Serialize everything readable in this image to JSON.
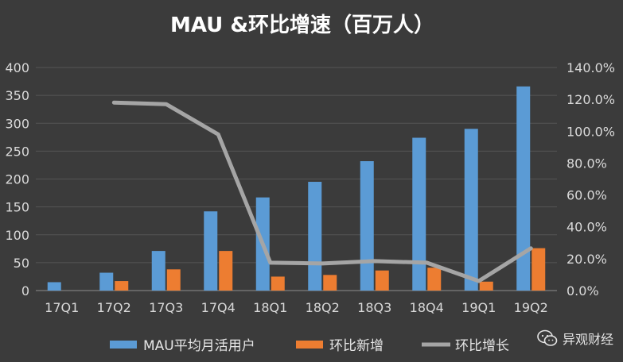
{
  "chart_data": {
    "type": "bar",
    "title": "MAU &环比增速（百万人）",
    "categories": [
      "17Q1",
      "17Q2",
      "17Q3",
      "17Q4",
      "18Q1",
      "18Q2",
      "18Q3",
      "18Q4",
      "19Q1",
      "19Q2"
    ],
    "y_left": {
      "min": 0,
      "max": 400,
      "ticks": [
        "0",
        "50",
        "100",
        "150",
        "200",
        "250",
        "300",
        "350",
        "400"
      ]
    },
    "y_right": {
      "min": 0,
      "max": 140,
      "ticks": [
        "0.0%",
        "20.0%",
        "40.0%",
        "60.0%",
        "80.0%",
        "100.0%",
        "120.0%",
        "140.0%"
      ]
    },
    "series": [
      {
        "name": "MAU平均月活用户",
        "type": "bar",
        "axis": "left",
        "color": "#5b9bd5",
        "values": [
          15,
          32,
          71,
          142,
          167,
          195,
          232,
          274,
          290,
          366
        ]
      },
      {
        "name": "环比新增",
        "type": "bar",
        "axis": "left",
        "color": "#ed7d31",
        "values": [
          null,
          17,
          38,
          71,
          25,
          28,
          36,
          41,
          16,
          76
        ]
      },
      {
        "name": "环比增长",
        "type": "line",
        "axis": "right",
        "color": "#a5a5a5",
        "values": [
          null,
          118,
          117,
          98,
          17.5,
          17,
          18.5,
          17.5,
          6,
          26.5
        ]
      }
    ],
    "legend_position": "bottom",
    "grid": "horizontal"
  },
  "watermark": {
    "text": "异观财经",
    "icon": "wechat-icon"
  }
}
